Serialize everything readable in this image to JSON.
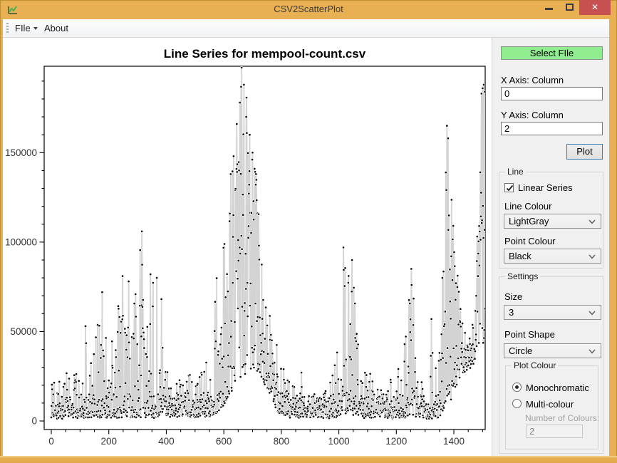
{
  "window": {
    "title": "CSV2ScatterPlot",
    "close_glyph": "✕"
  },
  "menu": {
    "file_label": "FIle",
    "about_label": "About"
  },
  "panel": {
    "select_file_button": "Select FIle",
    "x_axis_label": "X Axis: Column",
    "x_axis_value": "0",
    "y_axis_label": "Y Axis: Column",
    "y_axis_value": "2",
    "plot_button": "Plot",
    "line_group": {
      "title": "Line",
      "checkbox_label": "Linear Series",
      "checkbox_checked": true,
      "line_colour_label": "Line Colour",
      "line_colour_value": "LightGray",
      "point_colour_label": "Point Colour",
      "point_colour_value": "Black"
    },
    "settings_group": {
      "title": "Settings",
      "size_label": "Size",
      "size_value": "3",
      "point_shape_label": "Point Shape",
      "point_shape_value": "Circle",
      "plot_colour_group": {
        "title": "Plot Colour",
        "monochromatic_label": "Monochromatic",
        "monochromatic_selected": true,
        "multicolour_label": "Multi-colour",
        "multicolour_selected": false,
        "number_of_colours_label": "Number of Colours:",
        "number_of_colours_value": "2"
      }
    }
  },
  "chart_data": {
    "type": "scatter-line",
    "title": "Line Series for mempool-count.csv",
    "xlabel": "",
    "ylabel": "",
    "xlim": [
      0,
      1509
    ],
    "ylim": [
      0,
      198300
    ],
    "x_major_ticks": [
      0,
      200,
      400,
      600,
      800,
      1000,
      1200,
      1400
    ],
    "y_major_ticks": [
      0,
      50000,
      100000,
      150000
    ],
    "x_minor_step": 50,
    "y_minor_step": 10000,
    "grid": false,
    "legend": false,
    "point_color": "#000000",
    "point_outline": "#ffffff",
    "line_color": "#d3d3d3",
    "generator": {
      "seed": 74,
      "step": 1,
      "spike_exponent": 1.3,
      "floor_base": 400,
      "floor_range": 13500,
      "floor_exponent": 1.55,
      "amplitude_anchors": [
        [
          0,
          20000
        ],
        [
          40,
          26000
        ],
        [
          80,
          30000
        ],
        [
          110,
          40000
        ],
        [
          120,
          53000
        ],
        [
          135,
          30000
        ],
        [
          175,
          72000
        ],
        [
          195,
          40000
        ],
        [
          230,
          65000
        ],
        [
          248,
          81000
        ],
        [
          265,
          60000
        ],
        [
          290,
          70000
        ],
        [
          315,
          106000
        ],
        [
          330,
          75000
        ],
        [
          345,
          82000
        ],
        [
          370,
          80000
        ],
        [
          395,
          60000
        ],
        [
          415,
          35000
        ],
        [
          440,
          26000
        ],
        [
          465,
          22000
        ],
        [
          490,
          30000
        ],
        [
          515,
          26000
        ],
        [
          540,
          35000
        ],
        [
          555,
          50000
        ],
        [
          575,
          80000
        ],
        [
          595,
          110000
        ],
        [
          610,
          130000
        ],
        [
          625,
          155000
        ],
        [
          640,
          175000
        ],
        [
          655,
          190000
        ],
        [
          665,
          196000
        ],
        [
          678,
          185000
        ],
        [
          692,
          170000
        ],
        [
          706,
          152000
        ],
        [
          718,
          125000
        ],
        [
          730,
          95000
        ],
        [
          742,
          75000
        ],
        [
          755,
          65000
        ],
        [
          770,
          55000
        ],
        [
          788,
          40000
        ],
        [
          805,
          33000
        ],
        [
          825,
          30000
        ],
        [
          845,
          36000
        ],
        [
          865,
          30000
        ],
        [
          885,
          24000
        ],
        [
          905,
          20000
        ],
        [
          925,
          22000
        ],
        [
          945,
          20000
        ],
        [
          965,
          24000
        ],
        [
          985,
          32000
        ],
        [
          1000,
          45000
        ],
        [
          1015,
          97000
        ],
        [
          1030,
          82000
        ],
        [
          1045,
          92000
        ],
        [
          1060,
          65000
        ],
        [
          1075,
          48000
        ],
        [
          1095,
          32000
        ],
        [
          1115,
          24000
        ],
        [
          1135,
          18000
        ],
        [
          1155,
          20000
        ],
        [
          1175,
          24000
        ],
        [
          1195,
          28000
        ],
        [
          1215,
          34000
        ],
        [
          1235,
          55000
        ],
        [
          1252,
          85000
        ],
        [
          1268,
          62000
        ],
        [
          1282,
          35000
        ],
        [
          1298,
          14000
        ],
        [
          1312,
          8000
        ],
        [
          1322,
          55000
        ],
        [
          1332,
          25000
        ],
        [
          1345,
          40000
        ],
        [
          1360,
          80000
        ],
        [
          1375,
          165000
        ],
        [
          1388,
          140000
        ],
        [
          1398,
          112000
        ],
        [
          1408,
          92000
        ],
        [
          1418,
          72000
        ],
        [
          1428,
          58000
        ],
        [
          1438,
          50000
        ],
        [
          1448,
          48000
        ],
        [
          1458,
          54000
        ],
        [
          1468,
          64000
        ],
        [
          1478,
          88000
        ],
        [
          1488,
          188000
        ],
        [
          1498,
          186000
        ],
        [
          1509,
          150000
        ]
      ],
      "base_anchors": [
        [
          0,
          1200
        ],
        [
          560,
          2000
        ],
        [
          600,
          8000
        ],
        [
          630,
          16000
        ],
        [
          660,
          24000
        ],
        [
          690,
          28000
        ],
        [
          710,
          27000
        ],
        [
          730,
          24000
        ],
        [
          750,
          18000
        ],
        [
          770,
          11000
        ],
        [
          790,
          4000
        ],
        [
          815,
          1800
        ],
        [
          1000,
          1500
        ],
        [
          1020,
          4000
        ],
        [
          1060,
          2500
        ],
        [
          1100,
          1200
        ],
        [
          1230,
          1500
        ],
        [
          1250,
          3000
        ],
        [
          1290,
          800
        ],
        [
          1310,
          500
        ],
        [
          1330,
          800
        ],
        [
          1360,
          2000
        ],
        [
          1375,
          6000
        ],
        [
          1395,
          12000
        ],
        [
          1410,
          20000
        ],
        [
          1425,
          25000
        ],
        [
          1445,
          28000
        ],
        [
          1465,
          30000
        ],
        [
          1480,
          32000
        ],
        [
          1490,
          40000
        ],
        [
          1509,
          45000
        ]
      ],
      "density_anchors": [
        [
          0,
          0.33
        ],
        [
          120,
          0.38
        ],
        [
          150,
          0.33
        ],
        [
          200,
          0.45
        ],
        [
          250,
          0.5
        ],
        [
          320,
          0.5
        ],
        [
          400,
          0.38
        ],
        [
          430,
          0.33
        ],
        [
          520,
          0.3
        ],
        [
          560,
          0.4
        ],
        [
          585,
          0.5
        ],
        [
          605,
          0.62
        ],
        [
          630,
          0.85
        ],
        [
          660,
          0.92
        ],
        [
          700,
          0.88
        ],
        [
          730,
          0.85
        ],
        [
          760,
          0.65
        ],
        [
          790,
          0.45
        ],
        [
          850,
          0.33
        ],
        [
          950,
          0.3
        ],
        [
          1000,
          0.45
        ],
        [
          1020,
          0.55
        ],
        [
          1060,
          0.5
        ],
        [
          1100,
          0.33
        ],
        [
          1150,
          0.3
        ],
        [
          1200,
          0.33
        ],
        [
          1240,
          0.5
        ],
        [
          1270,
          0.45
        ],
        [
          1300,
          0.33
        ],
        [
          1320,
          0.33
        ],
        [
          1350,
          0.45
        ],
        [
          1370,
          0.55
        ],
        [
          1390,
          0.6
        ],
        [
          1410,
          0.65
        ],
        [
          1430,
          0.67
        ],
        [
          1460,
          0.67
        ],
        [
          1480,
          0.67
        ],
        [
          1495,
          0.75
        ],
        [
          1509,
          0.75
        ]
      ],
      "forced_points": [
        [
          119,
          53000
        ],
        [
          177,
          72000
        ],
        [
          248,
          81000
        ],
        [
          269,
          78000
        ],
        [
          315,
          106000
        ],
        [
          345,
          82000
        ],
        [
          367,
          80000
        ],
        [
          634,
          148000
        ],
        [
          645,
          166000
        ],
        [
          656,
          178000
        ],
        [
          662,
          197500
        ],
        [
          670,
          188000
        ],
        [
          678,
          170000
        ],
        [
          690,
          160000
        ],
        [
          700,
          150000
        ],
        [
          712,
          138000
        ],
        [
          1016,
          97000
        ],
        [
          1046,
          90000
        ],
        [
          1252,
          85000
        ],
        [
          1322,
          57000
        ],
        [
          1360,
          80000
        ],
        [
          1376,
          165000
        ],
        [
          1380,
          158000
        ],
        [
          1484,
          81000
        ],
        [
          1488,
          109000
        ],
        [
          1492,
          139000
        ],
        [
          1496,
          183000
        ],
        [
          1500,
          186000
        ],
        [
          1504,
          188000
        ],
        [
          1508,
          184000
        ]
      ]
    }
  }
}
